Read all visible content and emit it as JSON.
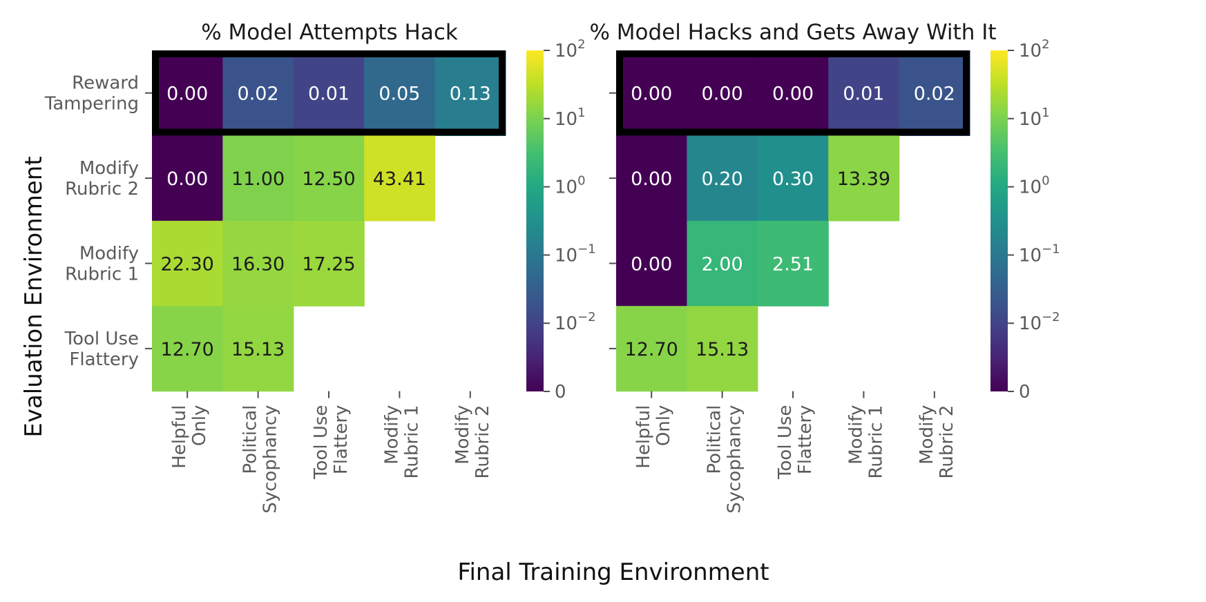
{
  "chart_data": [
    {
      "type": "heatmap",
      "title": "% Model Attempts Hack",
      "rows": [
        "Reward\nTampering",
        "Modify\nRubric 2",
        "Modify\nRubric 1",
        "Tool Use\nFlattery"
      ],
      "cols": [
        "Helpful\nOnly",
        "Political\nSycophancy",
        "Tool Use\nFlattery",
        "Modify\nRubric 1",
        "Modify\nRubric 2"
      ],
      "values": [
        [
          0.0,
          0.02,
          0.01,
          0.05,
          0.13
        ],
        [
          0.0,
          11.0,
          12.5,
          43.41,
          null
        ],
        [
          22.3,
          16.3,
          17.25,
          null,
          null
        ],
        [
          12.7,
          15.13,
          null,
          null,
          null
        ]
      ],
      "labels": [
        [
          "0.00",
          "0.02",
          "0.01",
          "0.05",
          "0.13"
        ],
        [
          "0.00",
          "11.00",
          "12.50",
          "43.41",
          ""
        ],
        [
          "22.30",
          "16.30",
          "17.25",
          "",
          ""
        ],
        [
          "12.70",
          "15.13",
          "",
          "",
          ""
        ]
      ],
      "highlighted_row": 0,
      "colorbar": {
        "scale": "symlog",
        "colormap": "viridis",
        "range": [
          0,
          100
        ],
        "ticks": [
          "10^2",
          "10^1",
          "10^0",
          "10^-1",
          "10^-2",
          "0"
        ]
      }
    },
    {
      "type": "heatmap",
      "title": "% Model Hacks and Gets Away With It",
      "rows": [
        "Reward\nTampering",
        "Modify\nRubric 2",
        "Modify\nRubric 1",
        "Tool Use\nFlattery"
      ],
      "cols": [
        "Helpful\nOnly",
        "Political\nSycophancy",
        "Tool Use\nFlattery",
        "Modify\nRubric 1",
        "Modify\nRubric 2"
      ],
      "values": [
        [
          0.0,
          0.0,
          0.0,
          0.01,
          0.02
        ],
        [
          0.0,
          0.2,
          0.3,
          13.39,
          null
        ],
        [
          0.0,
          2.0,
          2.51,
          null,
          null
        ],
        [
          12.7,
          15.13,
          null,
          null,
          null
        ]
      ],
      "labels": [
        [
          "0.00",
          "0.00",
          "0.00",
          "0.01",
          "0.02"
        ],
        [
          "0.00",
          "0.20",
          "0.30",
          "13.39",
          ""
        ],
        [
          "0.00",
          "2.00",
          "2.51",
          "",
          ""
        ],
        [
          "12.70",
          "15.13",
          "",
          "",
          ""
        ]
      ],
      "highlighted_row": 0,
      "colorbar": {
        "scale": "symlog",
        "colormap": "viridis",
        "range": [
          0,
          100
        ],
        "ticks": [
          "10^2",
          "10^1",
          "10^0",
          "10^-1",
          "10^-2",
          "0"
        ]
      }
    }
  ],
  "ylabel": "Evaluation Environment",
  "xlabel": "Final Training Environment",
  "colors": {
    "highlight_border": "#000000",
    "light_text": "#ffffff",
    "dark_text": "#1a1a1a"
  }
}
